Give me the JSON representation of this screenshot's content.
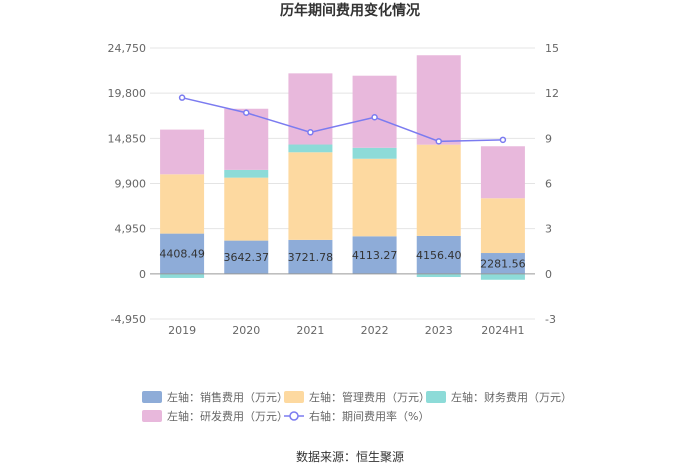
{
  "chart_data": {
    "type": "bar",
    "title": "历年期间费用变化情况",
    "categories": [
      "2019",
      "2020",
      "2021",
      "2022",
      "2023",
      "2024H1"
    ],
    "stacked": true,
    "left_axis": {
      "ylim": [
        -4950,
        24750
      ],
      "ticks": [
        "24,750",
        "19,800",
        "14,850",
        "9,900",
        "4,950",
        "0",
        "-4,950"
      ],
      "tick_values": [
        24750,
        19800,
        14850,
        9900,
        4950,
        0,
        -4950
      ]
    },
    "right_axis": {
      "ylim": [
        -3,
        15
      ],
      "ticks": [
        "15",
        "12",
        "9",
        "6",
        "3",
        "0",
        "-3"
      ],
      "tick_values": [
        15,
        12,
        9,
        6,
        3,
        0,
        -3
      ]
    },
    "series": [
      {
        "name": "左轴：销售费用（万元）",
        "axis": "left",
        "color": "#8eacd8",
        "values": [
          4408.49,
          3642.37,
          3721.78,
          4113.27,
          4156.4,
          2281.56
        ],
        "labels": [
          "4408.49",
          "3642.37",
          "3721.78",
          "4113.27",
          "4156.40",
          "2281.56"
        ]
      },
      {
        "name": "左轴：管理费用（万元）",
        "axis": "left",
        "color": "#fdd9a0",
        "values": [
          6500,
          6900,
          9600,
          8500,
          10000,
          6000
        ]
      },
      {
        "name": "左轴：财务费用（万元）",
        "axis": "left",
        "color": "#8ddbd8",
        "values": [
          -450,
          850,
          850,
          1200,
          -350,
          -650
        ]
      },
      {
        "name": "左轴：研发费用（万元）",
        "axis": "left",
        "color": "#e8b8dc",
        "values": [
          4900,
          6700,
          7800,
          7900,
          9800,
          5700
        ]
      },
      {
        "name": "右轴：期间费用率（%）",
        "axis": "right",
        "type": "line",
        "color": "#7b7bf0",
        "values": [
          11.7,
          10.7,
          9.4,
          10.4,
          8.8,
          8.9
        ]
      }
    ],
    "source": "数据来源：恒生聚源"
  }
}
